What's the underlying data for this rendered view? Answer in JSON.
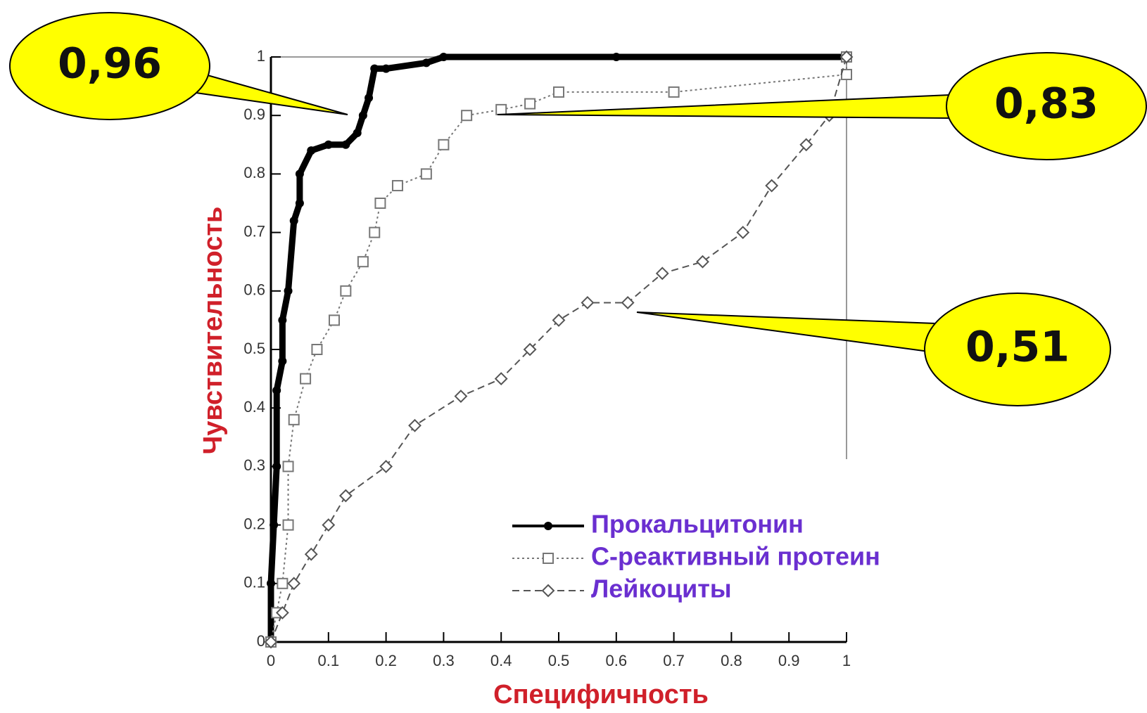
{
  "chart_data": {
    "type": "line",
    "xlabel": "Специфичность",
    "ylabel": "Чувствительность",
    "xlim": [
      0,
      1
    ],
    "ylim": [
      0,
      1
    ],
    "xticks": [
      0,
      0.1,
      0.2,
      0.3,
      0.4,
      0.5,
      0.6,
      0.7,
      0.8,
      0.9,
      1
    ],
    "yticks": [
      0,
      0.1,
      0.2,
      0.3,
      0.4,
      0.5,
      0.6,
      0.7,
      0.8,
      0.9,
      1
    ],
    "series": [
      {
        "name": "Прокальцитонин",
        "color": "#000000",
        "marker": "filled-circle",
        "linestyle": "solid",
        "x": [
          0,
          0,
          0.005,
          0.01,
          0.01,
          0.02,
          0.02,
          0.03,
          0.04,
          0.05,
          0.05,
          0.07,
          0.1,
          0.13,
          0.15,
          0.16,
          0.17,
          0.18,
          0.2,
          0.27,
          0.3,
          0.6,
          1
        ],
        "values": [
          0,
          0.1,
          0.2,
          0.3,
          0.43,
          0.48,
          0.55,
          0.6,
          0.72,
          0.75,
          0.8,
          0.84,
          0.85,
          0.85,
          0.87,
          0.9,
          0.93,
          0.98,
          0.98,
          0.99,
          1,
          1,
          1
        ]
      },
      {
        "name": "С-реактивный протеин",
        "color": "#777777",
        "marker": "open-square",
        "linestyle": "dotted",
        "x": [
          0,
          0.01,
          0.02,
          0.03,
          0.03,
          0.04,
          0.06,
          0.08,
          0.11,
          0.13,
          0.16,
          0.18,
          0.19,
          0.22,
          0.27,
          0.3,
          0.34,
          0.4,
          0.45,
          0.5,
          0.7,
          1,
          1
        ],
        "values": [
          0,
          0.05,
          0.1,
          0.2,
          0.3,
          0.38,
          0.45,
          0.5,
          0.55,
          0.6,
          0.65,
          0.7,
          0.75,
          0.78,
          0.8,
          0.85,
          0.9,
          0.91,
          0.92,
          0.94,
          0.94,
          0.97,
          1
        ]
      },
      {
        "name": "Лейкоциты",
        "color": "#555555",
        "marker": "open-diamond",
        "linestyle": "dashed",
        "x": [
          0,
          0.02,
          0.04,
          0.07,
          0.1,
          0.13,
          0.2,
          0.25,
          0.33,
          0.4,
          0.45,
          0.5,
          0.55,
          0.62,
          0.68,
          0.75,
          0.82,
          0.87,
          0.93,
          0.97,
          1
        ],
        "values": [
          0,
          0.05,
          0.1,
          0.15,
          0.2,
          0.25,
          0.3,
          0.37,
          0.42,
          0.45,
          0.5,
          0.55,
          0.58,
          0.58,
          0.63,
          0.65,
          0.7,
          0.78,
          0.85,
          0.9,
          1
        ]
      }
    ],
    "annotations": [
      "0,96",
      "0,83",
      "0,51"
    ],
    "annotation_color": "#ffff00"
  }
}
